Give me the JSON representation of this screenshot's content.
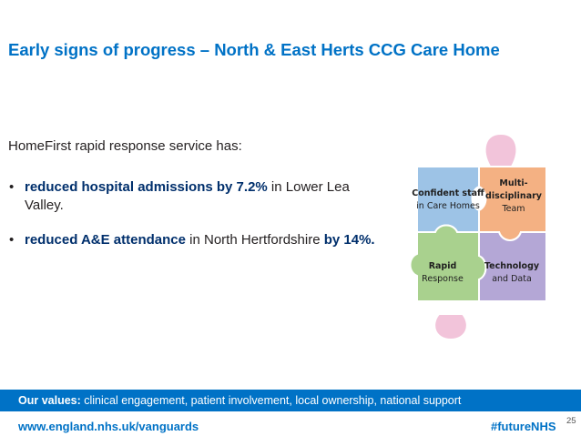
{
  "title": "Early signs of progress – North & East Herts CCG Care Home",
  "intro": "HomeFirst rapid response service has:",
  "bullets": [
    {
      "bullet": "•",
      "bold": "reduced hospital admissions by 7.2%",
      "rest": " in Lower Lea Valley."
    },
    {
      "bullet": "•",
      "bold": "reduced  A&E attendance",
      "rest": " in North Hertfordshire ",
      "bold2": "by 14%."
    }
  ],
  "puzzle": {
    "pieces": [
      {
        "lines": [
          "Confident staff",
          "in Care Homes"
        ],
        "color": "#9dc3e6"
      },
      {
        "lines": [
          "Multi-",
          "disciplinary",
          "Team"
        ],
        "color": "#f4b183"
      },
      {
        "lines": [
          "Rapid",
          "Response"
        ],
        "color": "#a9d18e"
      },
      {
        "lines": [
          "Technology",
          "and Data"
        ],
        "color": "#b4a7d6"
      }
    ],
    "pink_color": "#f2c4da"
  },
  "values": {
    "label": "Our values:",
    "text": " clinical engagement, patient involvement, local ownership, national support"
  },
  "footer": {
    "url": "www.england.nhs.uk/vanguards",
    "tag": "#futureNHS",
    "page": "25"
  },
  "colors": {
    "brand_blue": "#0072c6",
    "bold_text": "#002f6c"
  }
}
